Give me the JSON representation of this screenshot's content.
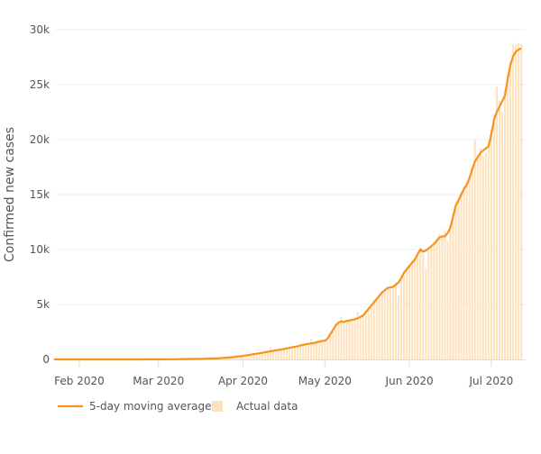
{
  "chart_data": {
    "type": "bar+line",
    "title": "",
    "xlabel": "",
    "ylabel": "Confirmed new cases",
    "ylim": [
      0,
      30000
    ],
    "grid": true,
    "legend_placement": "bottom-left",
    "start_date": "2020-01-22",
    "end_date": "2020-07-12",
    "x_ticks": [
      {
        "label": "Feb 2020",
        "day_index": 10
      },
      {
        "label": "Mar 2020",
        "day_index": 39
      },
      {
        "label": "Apr 2020",
        "day_index": 70
      },
      {
        "label": "May 2020",
        "day_index": 100
      },
      {
        "label": "Jun 2020",
        "day_index": 131
      },
      {
        "label": "Jul 2020",
        "day_index": 161
      }
    ],
    "y_ticks": [
      {
        "label": "0",
        "value": 0
      },
      {
        "label": "5k",
        "value": 5000
      },
      {
        "label": "10k",
        "value": 10000
      },
      {
        "label": "15k",
        "value": 15000
      },
      {
        "label": "20k",
        "value": 20000
      },
      {
        "label": "25k",
        "value": 25000
      },
      {
        "label": "30k",
        "value": 30000
      }
    ],
    "series": [
      {
        "name": "5-day moving average",
        "kind": "line",
        "color": "#f7931e",
        "values": [
          0,
          0,
          0,
          0,
          0,
          0,
          0,
          0,
          0,
          0,
          1,
          1,
          1,
          1,
          1,
          1,
          1,
          1,
          2,
          2,
          2,
          2,
          2,
          2,
          2,
          2,
          2,
          2,
          3,
          3,
          3,
          3,
          4,
          4,
          5,
          5,
          6,
          6,
          7,
          8,
          10,
          12,
          14,
          16,
          18,
          20,
          23,
          26,
          30,
          34,
          38,
          42,
          46,
          50,
          55,
          60,
          65,
          70,
          80,
          90,
          100,
          110,
          125,
          140,
          160,
          180,
          200,
          230,
          260,
          290,
          320,
          360,
          400,
          440,
          480,
          520,
          560,
          600,
          650,
          700,
          740,
          780,
          820,
          860,
          900,
          950,
          1000,
          1050,
          1100,
          1150,
          1200,
          1260,
          1320,
          1380,
          1420,
          1460,
          1500,
          1560,
          1620,
          1680,
          1700,
          1900,
          2300,
          2700,
          3100,
          3350,
          3450,
          3400,
          3500,
          3550,
          3600,
          3650,
          3750,
          3850,
          4000,
          4300,
          4600,
          4900,
          5200,
          5500,
          5800,
          6100,
          6300,
          6500,
          6550,
          6600,
          6800,
          7000,
          7400,
          7900,
          8200,
          8500,
          8800,
          9100,
          9600,
          10000,
          9800,
          9900,
          10100,
          10300,
          10500,
          10800,
          11100,
          11200,
          11200,
          11500,
          12000,
          13000,
          14000,
          14500,
          15000,
          15500,
          15900,
          16500,
          17300,
          18000,
          18400,
          18800,
          19000,
          19200,
          19400,
          20500,
          21800,
          22500,
          23000,
          23500,
          24000,
          25500,
          26800,
          27600,
          28000,
          28200,
          28300
        ]
      },
      {
        "name": "Actual data",
        "kind": "bar",
        "color": "#fde2bd",
        "values": [
          0,
          0,
          0,
          0,
          0,
          0,
          0,
          0,
          0,
          0,
          1,
          2,
          0,
          1,
          1,
          2,
          1,
          0,
          3,
          2,
          2,
          3,
          1,
          2,
          2,
          3,
          2,
          1,
          4,
          3,
          3,
          4,
          5,
          3,
          6,
          5,
          7,
          6,
          8,
          9,
          11,
          12,
          15,
          15,
          19,
          21,
          24,
          25,
          32,
          33,
          40,
          41,
          48,
          50,
          57,
          58,
          68,
          70,
          84,
          88,
          105,
          108,
          130,
          138,
          165,
          178,
          210,
          225,
          270,
          285,
          340,
          350,
          420,
          430,
          500,
          510,
          580,
          590,
          680,
          690,
          1100,
          760,
          850,
          850,
          930,
          940,
          1030,
          1040,
          1130,
          1140,
          1240,
          1250,
          1350,
          1370,
          1450,
          1900,
          1550,
          1550,
          1680,
          1670,
          1750,
          1880,
          2400,
          2800,
          3200,
          3400,
          3900,
          3300,
          3600,
          3500,
          3700,
          3600,
          4300,
          3800,
          4100,
          4400,
          4800,
          4900,
          5400,
          5500,
          5900,
          6200,
          6400,
          6600,
          6500,
          6700,
          7000,
          5800,
          7600,
          8000,
          8300,
          8600,
          9000,
          9300,
          9700,
          10200,
          9600,
          8300,
          10200,
          10400,
          10700,
          11000,
          11400,
          11300,
          11800,
          10800,
          12200,
          13300,
          14300,
          14700,
          15300,
          15800,
          16100,
          16800,
          17500,
          20000,
          18600,
          19200,
          18500,
          18800,
          19500,
          21000,
          22300,
          24800,
          23500,
          22500,
          24500,
          26000,
          27000,
          28700,
          28700,
          28800,
          28700
        ]
      }
    ]
  },
  "legend": {
    "line_label": "5-day moving average",
    "bar_label": "Actual data"
  }
}
